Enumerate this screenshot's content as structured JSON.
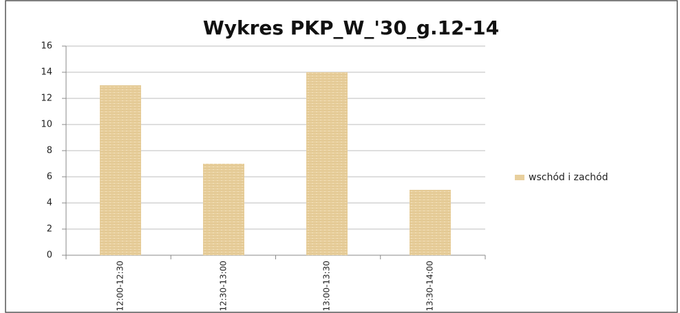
{
  "chart_data": {
    "type": "bar",
    "title": "Wykres PKP_W_'30_g.12-14",
    "categories": [
      "12:00-12:30",
      "12:30-13:00",
      "13:00-13:30",
      "13:30-14:00"
    ],
    "series": [
      {
        "name": "wschód i zachód",
        "color": "#e8cf9d",
        "values": [
          13,
          7,
          14,
          5
        ]
      }
    ],
    "ylim": [
      0,
      16
    ],
    "yticks": [
      0,
      2,
      4,
      6,
      8,
      10,
      12,
      14,
      16
    ],
    "grid": true,
    "legend": "right"
  }
}
